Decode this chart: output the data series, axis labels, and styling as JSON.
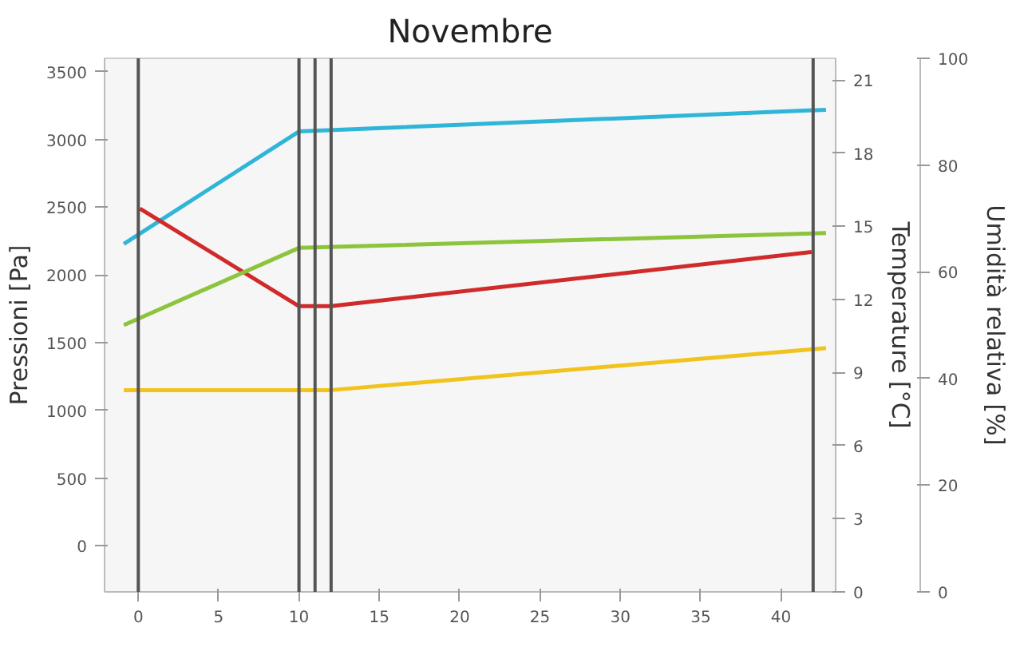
{
  "chart_data": {
    "type": "line",
    "title": "Novembre",
    "ylabel": "Pressioni [Pa]",
    "y2label": "Temperature [°C]",
    "y3label": "Umidità relativa [%]",
    "xlim": [
      -2.1,
      43.4
    ],
    "xticks": [
      0,
      5,
      10,
      15,
      20,
      25,
      30,
      35,
      40
    ],
    "ylim": [
      -340,
      3600
    ],
    "yticks": [
      0,
      500,
      1000,
      1500,
      2000,
      2500,
      3000,
      3500
    ],
    "y2lim": [
      0,
      21.9
    ],
    "y2ticks": [
      0,
      3,
      6,
      9,
      12,
      15,
      18,
      21
    ],
    "y3lim": [
      0,
      100
    ],
    "y3ticks": [
      0,
      20,
      40,
      60,
      80,
      100
    ],
    "grid": false,
    "line_style": "solid",
    "ref_lines": [
      {
        "axis": "x",
        "value": 0,
        "color": "#555555"
      },
      {
        "axis": "x",
        "value": 10,
        "color": "#555555"
      },
      {
        "axis": "x",
        "value": 11,
        "color": "#555555"
      },
      {
        "axis": "x",
        "value": 12,
        "color": "#555555"
      },
      {
        "axis": "x",
        "value": 42,
        "color": "#555555"
      }
    ],
    "series": [
      {
        "color": "#2fb5d8",
        "x": [
          -0.9,
          10,
          42.8
        ],
        "values": [
          2230,
          3060,
          3220
        ]
      },
      {
        "color": "#d02a2a",
        "x": [
          0.1,
          10,
          12,
          41.9
        ],
        "values": [
          2490,
          1770,
          1770,
          2170
        ]
      },
      {
        "color": "#8cc43c",
        "x": [
          -0.9,
          10,
          42.8
        ],
        "values": [
          1630,
          2200,
          2310
        ]
      },
      {
        "color": "#f2c31c",
        "x": [
          -0.9,
          12,
          42.8
        ],
        "values": [
          1150,
          1150,
          1460
        ]
      }
    ]
  }
}
